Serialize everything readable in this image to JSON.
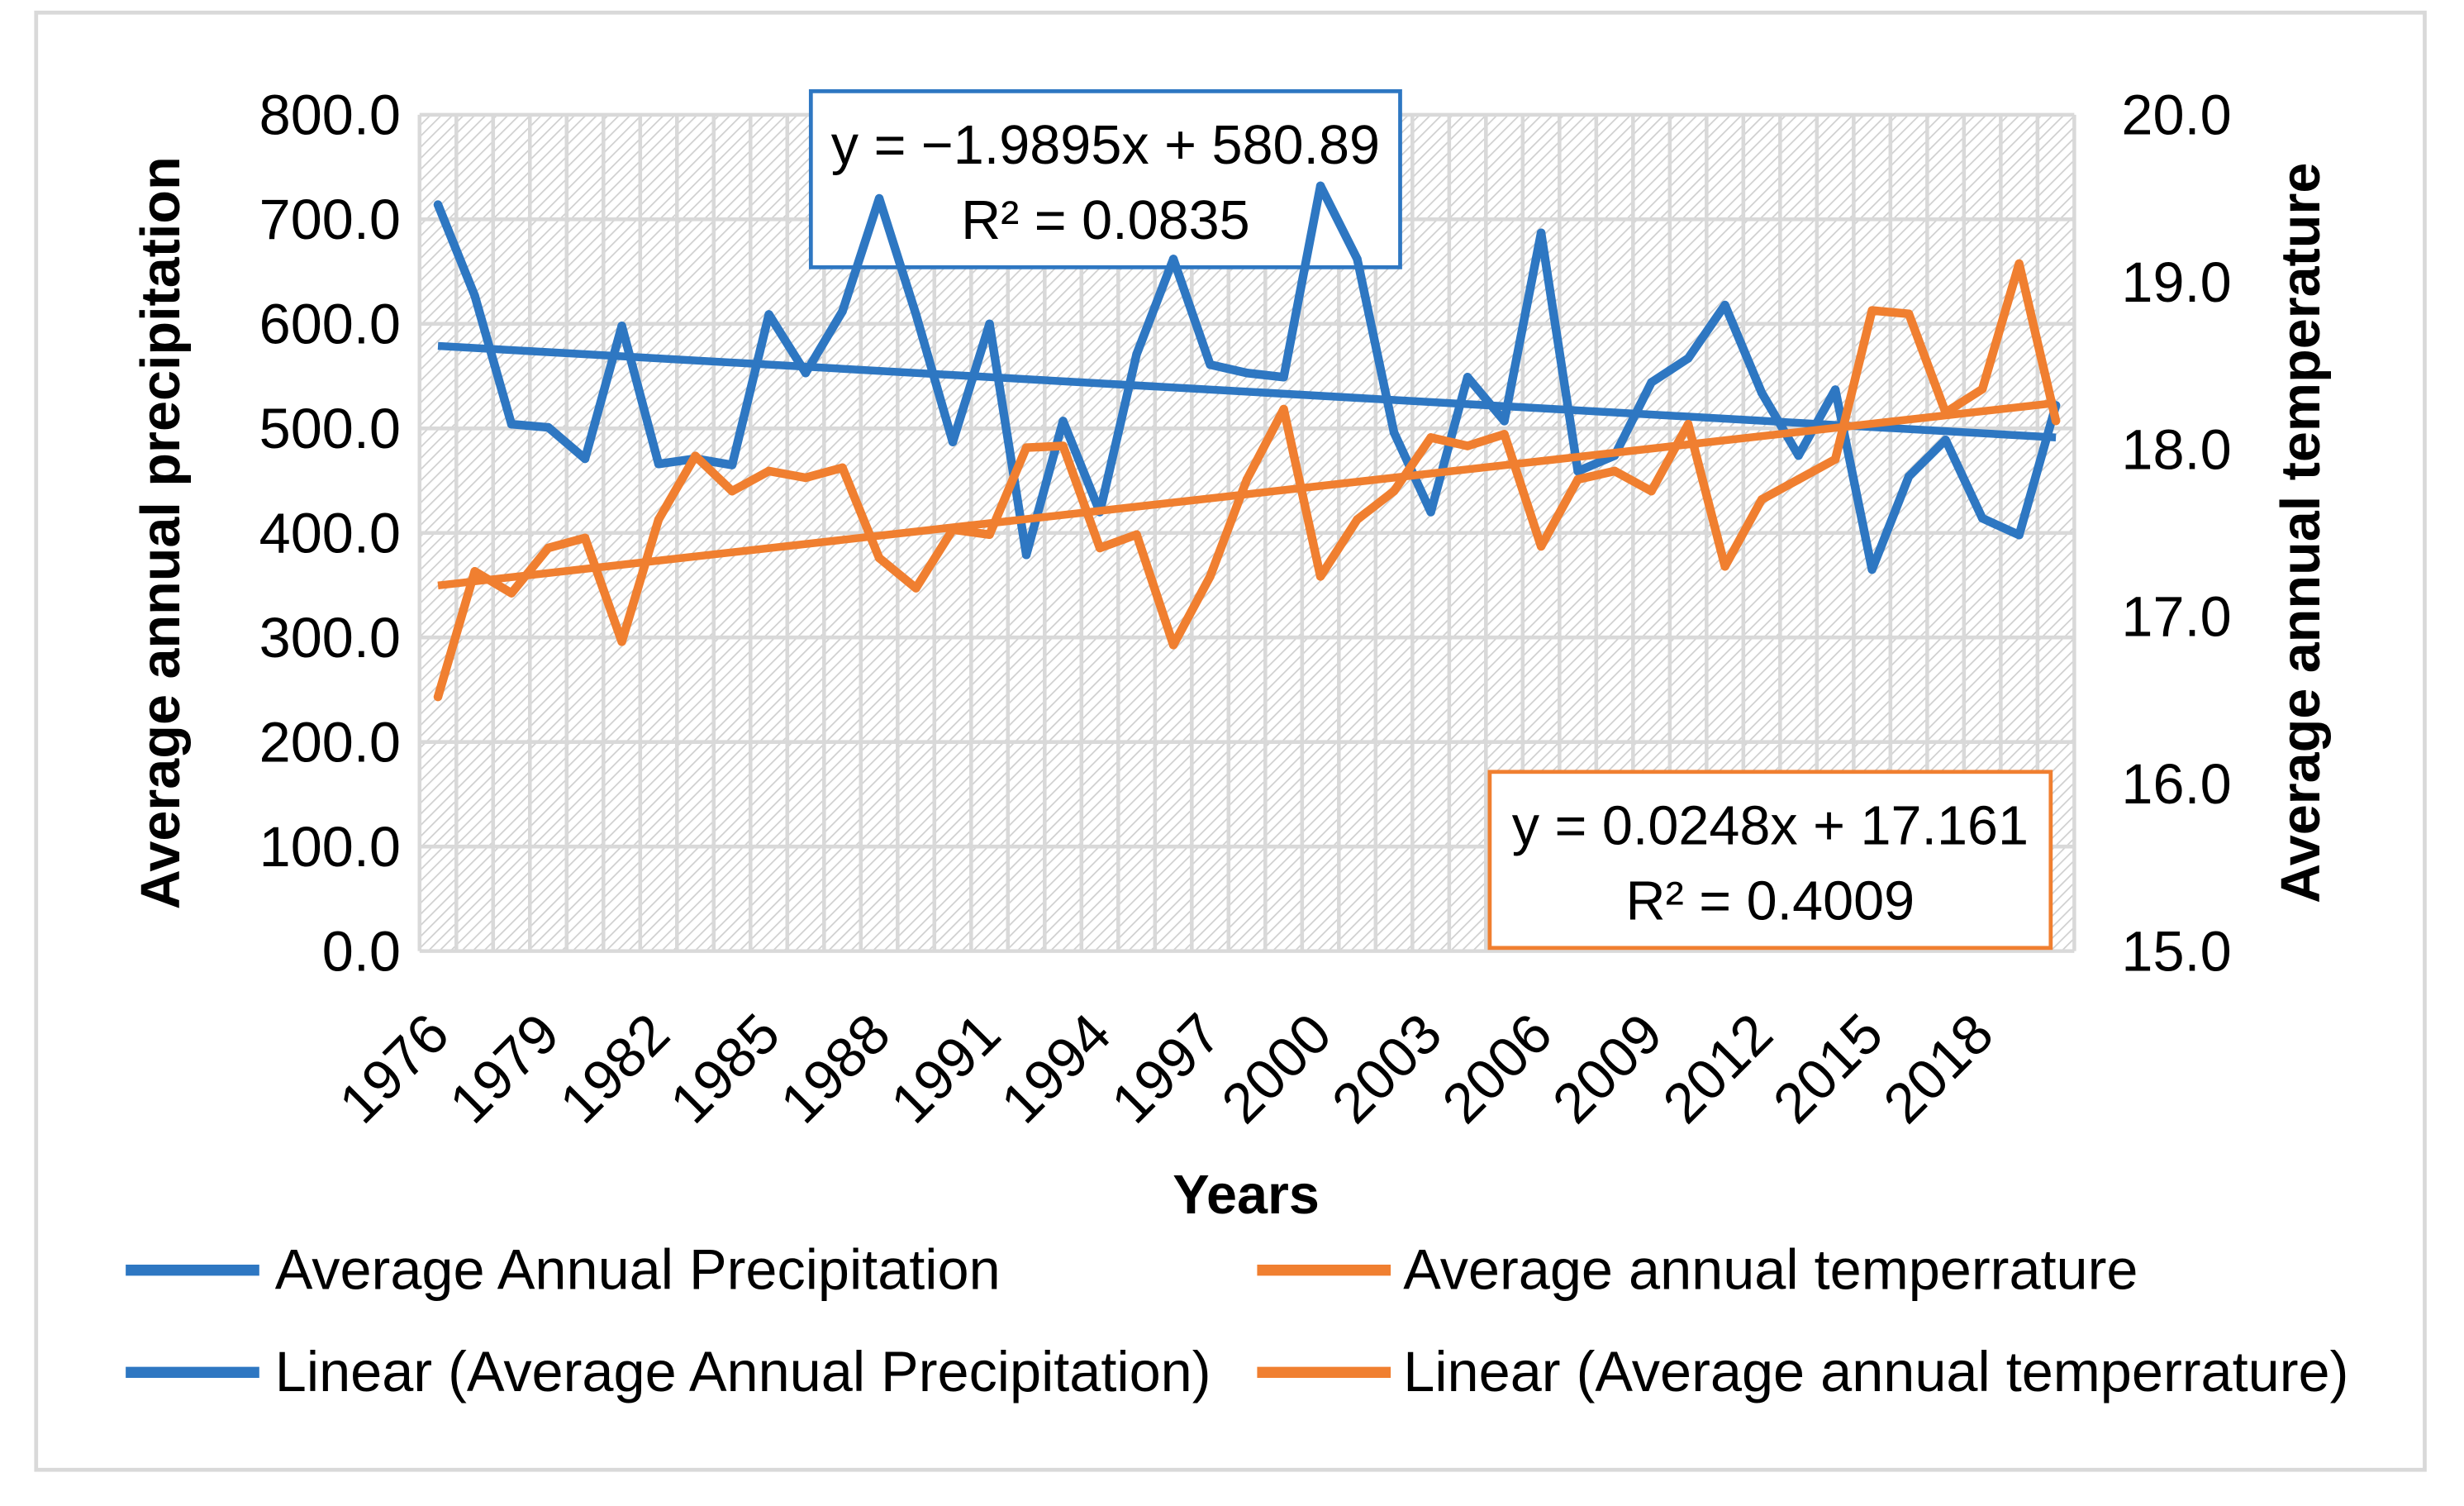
{
  "chart_data": {
    "type": "line",
    "grid": true,
    "x_axis": {
      "label": "Years",
      "values": [
        1976,
        1977,
        1978,
        1979,
        1980,
        1981,
        1982,
        1983,
        1984,
        1985,
        1986,
        1987,
        1988,
        1989,
        1990,
        1991,
        1992,
        1993,
        1994,
        1995,
        1996,
        1997,
        1998,
        1999,
        2000,
        2001,
        2002,
        2003,
        2004,
        2005,
        2006,
        2007,
        2008,
        2009,
        2010,
        2011,
        2012,
        2013,
        2014,
        2015,
        2016,
        2017,
        2018,
        2019,
        2020
      ],
      "tick_labels": [
        "1976",
        "1979",
        "1982",
        "1985",
        "1988",
        "1991",
        "1994",
        "1997",
        "2000",
        "2003",
        "2006",
        "2009",
        "2012",
        "2015",
        "2018"
      ]
    },
    "y_axis": {
      "label": "Average annual precipitation",
      "min": 0,
      "max": 800,
      "step": 100,
      "tick_labels": [
        "800.0",
        "700.0",
        "600.0",
        "500.0",
        "400.0",
        "300.0",
        "200.0",
        "100.0",
        "0.0"
      ]
    },
    "y2_axis": {
      "label": "Average annual temperature",
      "min": 15,
      "max": 20,
      "step": 1,
      "tick_labels": [
        "20.0",
        "19.0",
        "18.0",
        "17.0",
        "16.0",
        "15.0"
      ]
    },
    "series": [
      {
        "name": "Average Annual Precipitation",
        "y_axis": 1,
        "color": "#2E77C2",
        "values": [
          714,
          627,
          504,
          501,
          471,
          598,
          466,
          471,
          465,
          609,
          553,
          612,
          720,
          609,
          487,
          600,
          379,
          507,
          420,
          571,
          662,
          561,
          553,
          549,
          732,
          662,
          496,
          420,
          549,
          507,
          687,
          459,
          474,
          544,
          567,
          618,
          534,
          474,
          537,
          365,
          454,
          489,
          414,
          398,
          522
        ],
        "trendline": {
          "name": "Linear (Average Annual Precipitation)",
          "slope": -1.9895,
          "intercept": 580.89,
          "equation": "y = −1.9895x + 580.89",
          "r_squared": "R² = 0.0835"
        }
      },
      {
        "name": "Average annual temperrature",
        "y_axis": 2,
        "color": "#F07F30",
        "values": [
          16.52,
          17.27,
          17.14,
          17.41,
          17.47,
          16.85,
          17.58,
          17.96,
          17.75,
          17.87,
          17.83,
          17.89,
          17.35,
          17.17,
          17.52,
          17.49,
          18.01,
          18.02,
          17.41,
          17.49,
          16.83,
          17.24,
          17.82,
          18.24,
          17.24,
          17.58,
          17.75,
          18.07,
          18.02,
          18.09,
          17.42,
          17.82,
          17.87,
          17.75,
          18.15,
          17.3,
          17.7,
          17.82,
          17.94,
          18.83,
          18.81,
          18.22,
          18.36,
          19.11,
          18.17
        ],
        "trendline": {
          "name": "Linear (Average annual temperrature)",
          "slope": 0.0248,
          "intercept": 17.161,
          "equation": "y = 0.0248x + 17.161",
          "r_squared": "R² = 0.4009"
        }
      }
    ]
  }
}
